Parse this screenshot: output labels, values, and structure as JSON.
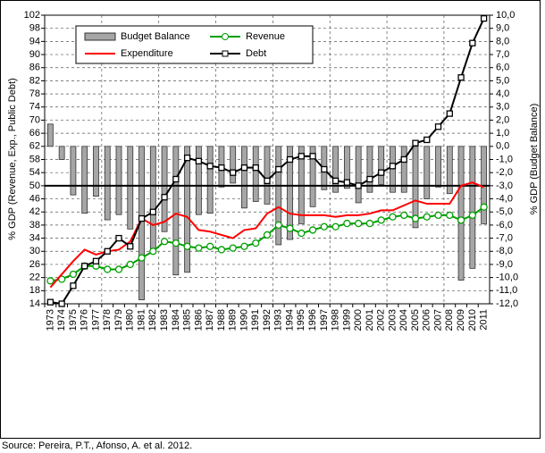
{
  "chart_data": {
    "type": "combo",
    "y_label": "% GDP (Revenue, Exp., Public Debt)",
    "y2_label": "% GDP (Budget Balance)",
    "source": "Source: Pereira, P.T., Afonso, A. et al. 2012.",
    "categories": [
      "1973",
      "1974",
      "1975",
      "1976",
      "1977",
      "1978",
      "1979",
      "1980",
      "1981",
      "1982",
      "1983",
      "1984",
      "1985",
      "1986",
      "1987",
      "1988",
      "1989",
      "1990",
      "1991",
      "1992",
      "1993",
      "1994",
      "1995",
      "1996",
      "1997",
      "1998",
      "1999",
      "2000",
      "2001",
      "2002",
      "2003",
      "2004",
      "2005",
      "2006",
      "2007",
      "2008",
      "2009",
      "2010",
      "2011"
    ],
    "ylim": [
      14,
      102
    ],
    "yticks": [
      14,
      18,
      22,
      26,
      30,
      34,
      38,
      42,
      46,
      50,
      54,
      58,
      62,
      66,
      70,
      74,
      78,
      82,
      86,
      90,
      94,
      98,
      102
    ],
    "y2lim": [
      -12,
      10
    ],
    "y2ticks": [
      {
        "value": -12,
        "label": "-12,0"
      },
      {
        "value": -11,
        "label": "-11,0"
      },
      {
        "value": -10,
        "label": "-10,0"
      },
      {
        "value": -9,
        "label": "-9,0"
      },
      {
        "value": -8,
        "label": "-8,0"
      },
      {
        "value": -7,
        "label": "-7,0"
      },
      {
        "value": -6,
        "label": "-6,0"
      },
      {
        "value": -5,
        "label": "-5,0"
      },
      {
        "value": -4,
        "label": "-4,0"
      },
      {
        "value": -3,
        "label": "-3,0"
      },
      {
        "value": -2,
        "label": "-2,0"
      },
      {
        "value": -1,
        "label": "-1,0"
      },
      {
        "value": 0,
        "label": "0,0"
      },
      {
        "value": 1,
        "label": "1,0"
      },
      {
        "value": 2,
        "label": "2,0"
      },
      {
        "value": 3,
        "label": "3,0"
      },
      {
        "value": 4,
        "label": "4,0"
      },
      {
        "value": 5,
        "label": "5,0"
      },
      {
        "value": 6,
        "label": "6,0"
      },
      {
        "value": 7,
        "label": "7,0"
      },
      {
        "value": 8,
        "label": "8,0"
      },
      {
        "value": 9,
        "label": "9,0"
      },
      {
        "value": 10,
        "label": "10,0"
      }
    ],
    "grid": true,
    "hline": 50,
    "series": [
      {
        "name": "Budget Balance",
        "type": "bar",
        "axis": "y2",
        "color": "#a6a6a6",
        "values": [
          1.7,
          -1.0,
          -3.7,
          -5.1,
          -3.8,
          -5.6,
          -5.2,
          -6.3,
          -11.7,
          -7.8,
          -6.5,
          -9.8,
          -9.6,
          -5.2,
          -5.1,
          -3.1,
          -2.8,
          -4.7,
          -4.2,
          -4.4,
          -7.5,
          -7.1,
          -5.9,
          -4.6,
          -3.3,
          -3.5,
          -3.2,
          -4.3,
          -3.5,
          -2.9,
          -3.5,
          -3.5,
          -6.2,
          -4.0,
          -3.1,
          -3.6,
          -10.2,
          -9.3,
          -5.9
        ]
      },
      {
        "name": "Revenue",
        "type": "line",
        "marker": "circle",
        "color": "#00a000",
        "values": [
          21,
          21.5,
          23,
          25.5,
          25.5,
          24.5,
          24.5,
          26,
          28,
          30,
          33,
          32.5,
          31.5,
          31,
          31.5,
          30.5,
          31,
          31.5,
          32.5,
          35,
          38,
          37,
          35.5,
          36.5,
          37.5,
          37.5,
          38.5,
          38.5,
          38.5,
          39.5,
          40.5,
          41,
          40,
          40.5,
          41,
          41,
          39.5,
          41,
          43.5
        ]
      },
      {
        "name": "Expenditure",
        "type": "line",
        "color": "#ff0000",
        "values": [
          19,
          23,
          27,
          30.5,
          29,
          30,
          30.5,
          33,
          40,
          38,
          39,
          41.5,
          40.5,
          36.5,
          36,
          35,
          34,
          36.5,
          37,
          41.5,
          43.5,
          41.5,
          41,
          41,
          41,
          40.5,
          41,
          41,
          41.5,
          42.5,
          42.5,
          44,
          45.5,
          44.5,
          44.5,
          44.5,
          50,
          51,
          49.5
        ]
      },
      {
        "name": "Debt",
        "type": "line",
        "marker": "square",
        "color": "#000000",
        "values": [
          14.5,
          14,
          19.5,
          25.5,
          27,
          30,
          34,
          31.5,
          40,
          42,
          46.5,
          52,
          58.5,
          57.5,
          56,
          55.5,
          54,
          55.5,
          55.5,
          51.5,
          55,
          58,
          59,
          59,
          55,
          51.5,
          51,
          50,
          52,
          54,
          56,
          58,
          63,
          64,
          68,
          72,
          83,
          93.5,
          101
        ]
      }
    ]
  }
}
